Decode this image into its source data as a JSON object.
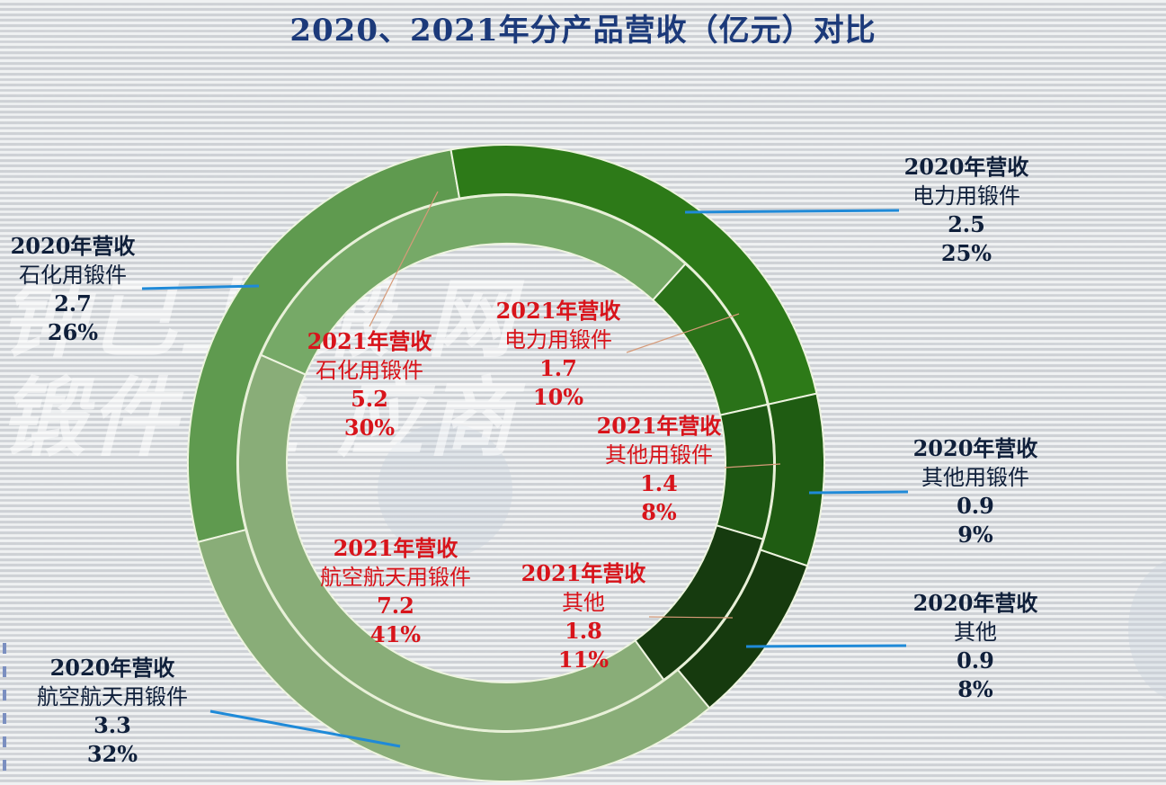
{
  "title": "2020、2021年分产品营收（亿元）对比",
  "watermark_lines": [
    "钟已上 锻 网",
    "锻件 业 应商"
  ],
  "colors": {
    "title": "#1c3a7a",
    "label_2020": "#0f1f3a",
    "label_2021": "#d8141b",
    "leader_2020": "#1f8ad8",
    "leader_2021": "#d8a080"
  },
  "chart_data": {
    "type": "pie",
    "subtype": "nested-donut",
    "title": "2020、2021年分产品营收（亿元）对比",
    "unit": "亿元",
    "categories": [
      "石化用锻件",
      "电力用锻件",
      "其他用锻件",
      "其他",
      "航空航天用锻件"
    ],
    "series": [
      {
        "name": "2020年营收",
        "ring": "outer",
        "values": [
          2.7,
          2.5,
          0.9,
          0.9,
          3.3
        ],
        "percents": [
          26,
          25,
          9,
          8,
          32
        ]
      },
      {
        "name": "2021年营收",
        "ring": "inner",
        "values": [
          5.2,
          1.7,
          1.4,
          1.8,
          7.2
        ],
        "percents": [
          30,
          10,
          8,
          11,
          41
        ]
      }
    ],
    "segment_colors": {
      "outer": [
        "#5f9a4f",
        "#2d7a18",
        "#1f5c12",
        "#163a0e",
        "#89ad78"
      ],
      "inner": [
        "#76a967",
        "#2a7219",
        "#1d5712",
        "#163b0f",
        "#89ad78"
      ]
    },
    "legend": "none (data labels with leader lines)"
  },
  "labels_2020": [
    {
      "year": "2020年营收",
      "category": "石化用锻件",
      "value": "2.7",
      "percent": "26%"
    },
    {
      "year": "2020年营收",
      "category": "电力用锻件",
      "value": "2.5",
      "percent": "25%"
    },
    {
      "year": "2020年营收",
      "category": "其他用锻件",
      "value": "0.9",
      "percent": "9%"
    },
    {
      "year": "2020年营收",
      "category": "其他",
      "value": "0.9",
      "percent": "8%"
    },
    {
      "year": "2020年营收",
      "category": "航空航天用锻件",
      "value": "3.3",
      "percent": "32%"
    }
  ],
  "labels_2021": [
    {
      "year": "2021年营收",
      "category": "石化用锻件",
      "value": "5.2",
      "percent": "30%"
    },
    {
      "year": "2021年营收",
      "category": "电力用锻件",
      "value": "1.7",
      "percent": "10%"
    },
    {
      "year": "2021年营收",
      "category": "其他用锻件",
      "value": "1.4",
      "percent": "8%"
    },
    {
      "year": "2021年营收",
      "category": "其他",
      "value": "1.8",
      "percent": "11%"
    },
    {
      "year": "2021年营收",
      "category": "航空航天用锻件",
      "value": "7.2",
      "percent": "41%"
    }
  ]
}
